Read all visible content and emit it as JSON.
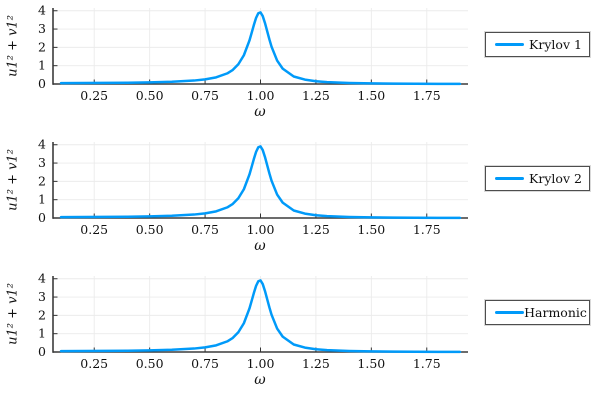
{
  "figure": {
    "subplots": [
      {
        "ylabel": "u1² + v1²",
        "xlabel": "ω",
        "legend": "Krylov 1"
      },
      {
        "ylabel": "u1² + v1²",
        "xlabel": "ω",
        "legend": "Krylov 2"
      },
      {
        "ylabel": "u1² + v1²",
        "xlabel": "ω",
        "legend": "Harmonic"
      }
    ]
  },
  "chart_data": {
    "type": "line",
    "title": "",
    "xlabel": "ω",
    "ylabel": "u1² + v1²",
    "xlim": [
      0.064,
      1.936
    ],
    "ylim": [
      0,
      4.15
    ],
    "grid": true,
    "legend_position": "outer-right",
    "x": [
      0.1,
      0.2,
      0.3,
      0.4,
      0.5,
      0.6,
      0.7,
      0.75,
      0.8,
      0.85,
      0.875,
      0.9,
      0.925,
      0.95,
      0.96,
      0.97,
      0.98,
      0.99,
      1.0,
      1.01,
      1.02,
      1.03,
      1.04,
      1.05,
      1.075,
      1.1,
      1.15,
      1.2,
      1.25,
      1.3,
      1.4,
      1.5,
      1.6,
      1.7,
      1.8,
      1.9
    ],
    "series": [
      {
        "name": "Krylov 1",
        "values": [
          0.051,
          0.054,
          0.06,
          0.071,
          0.088,
          0.121,
          0.188,
          0.252,
          0.363,
          0.58,
          0.77,
          1.08,
          1.57,
          2.37,
          2.79,
          3.22,
          3.61,
          3.86,
          3.91,
          3.71,
          3.34,
          2.89,
          2.44,
          2.03,
          1.28,
          0.84,
          0.41,
          0.24,
          0.15,
          0.1,
          0.053,
          0.031,
          0.02,
          0.014,
          0.01,
          0.007
        ]
      },
      {
        "name": "Krylov 2",
        "values": [
          0.051,
          0.054,
          0.06,
          0.071,
          0.088,
          0.121,
          0.188,
          0.252,
          0.363,
          0.58,
          0.77,
          1.08,
          1.57,
          2.37,
          2.79,
          3.22,
          3.61,
          3.86,
          3.91,
          3.71,
          3.34,
          2.89,
          2.44,
          2.03,
          1.28,
          0.84,
          0.41,
          0.24,
          0.15,
          0.1,
          0.053,
          0.031,
          0.02,
          0.014,
          0.01,
          0.007
        ]
      },
      {
        "name": "Harmonic",
        "values": [
          0.051,
          0.054,
          0.06,
          0.071,
          0.088,
          0.121,
          0.188,
          0.252,
          0.363,
          0.58,
          0.77,
          1.08,
          1.57,
          2.37,
          2.79,
          3.22,
          3.61,
          3.86,
          3.91,
          3.71,
          3.34,
          2.89,
          2.44,
          2.03,
          1.28,
          0.84,
          0.41,
          0.24,
          0.15,
          0.1,
          0.053,
          0.031,
          0.02,
          0.014,
          0.01,
          0.007
        ]
      }
    ],
    "xticks": {
      "values": [
        0.25,
        0.5,
        0.75,
        1.0,
        1.25,
        1.5,
        1.75
      ],
      "labels": [
        "0.25",
        "0.50",
        "0.75",
        "1.00",
        "1.25",
        "1.50",
        "1.75"
      ]
    },
    "yticks": {
      "values": [
        0,
        1,
        2,
        3,
        4
      ],
      "labels": [
        "0",
        "1",
        "2",
        "3",
        "4"
      ]
    }
  },
  "colors": {
    "line": "#009AF9",
    "spine": "#3c3c3c",
    "tick": "#333333",
    "grid": "#ebebeb",
    "text": "#111111",
    "legend_border": "#4d4d4d",
    "background": "#ffffff"
  }
}
